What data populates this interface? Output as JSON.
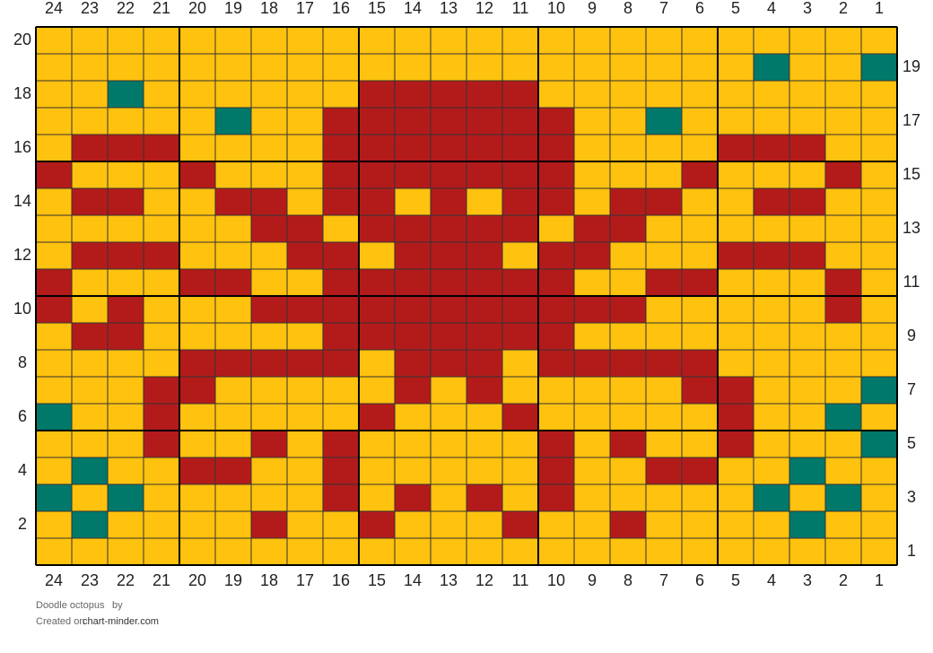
{
  "chart": {
    "type": "knitting-grid",
    "palette": {
      "Y": "#ffc20e",
      "R": "#b31b1b",
      "G": "#00786a"
    },
    "columns": [
      24,
      23,
      22,
      21,
      20,
      19,
      18,
      17,
      16,
      15,
      14,
      13,
      12,
      11,
      10,
      9,
      8,
      7,
      6,
      5,
      4,
      3,
      2,
      1
    ],
    "rows": [
      {
        "label": 20,
        "cells": "YYYYYYYYYYYYYYYYYYYYYYYY"
      },
      {
        "label": 19,
        "cells": "YYYYYYYYYYYYYYYYYYYYGYYG"
      },
      {
        "label": 18,
        "cells": "YYGYYYYYYRRRRRYYYYYYYYYY"
      },
      {
        "label": 17,
        "cells": "YYYYYGYYRRRRRRRYYGYYYYYY"
      },
      {
        "label": 16,
        "cells": "YRRRYYYYRRRRRRRYYYYRRRYY"
      },
      {
        "label": 15,
        "cells": "RYYYRYYYRRRRRRRYYYRYYYRY"
      },
      {
        "label": 14,
        "cells": "YRRYYRRYRRYRYRRYRRYYRRYY"
      },
      {
        "label": 13,
        "cells": "YYYYYYRRYRRRRRYRRYYYYYYY"
      },
      {
        "label": 12,
        "cells": "YRRRYYYRRYRRRYRRYYYRRRYY"
      },
      {
        "label": 11,
        "cells": "RYYYRRYYRRRRRRRYYRRYYYRY"
      },
      {
        "label": 10,
        "cells": "RYRYYYRRRRRRRRRRRYYYYYRY"
      },
      {
        "label": 9,
        "cells": "YRRYYYYYRRRRRRRYYYYYYYYY"
      },
      {
        "label": 8,
        "cells": "YYYYRRRRRYRRRYRRRRRYYYYY"
      },
      {
        "label": 7,
        "cells": "YYYRRYYYYYRYRYYYYYRRYYYG"
      },
      {
        "label": 6,
        "cells": "GYYRYYYYYRYYYRYYYYYRYYGY"
      },
      {
        "label": 5,
        "cells": "YYYRYYRYRYYYYYRYRYYRYYYG"
      },
      {
        "label": 4,
        "cells": "YGYYRRYYRYYYYYRYYRRYYGYY"
      },
      {
        "label": 3,
        "cells": "GYGYYYYYRYRYRYRYYYYYGYGY"
      },
      {
        "label": 2,
        "cells": "YGYYYYRYYRYYYRYYRYYYYGYY"
      },
      {
        "label": 1,
        "cells": "YYYYYYYYYYYYYYYYYYYYYYYY"
      }
    ],
    "title": "Doodle octopus",
    "by": "by",
    "created": "Created on",
    "site": "chart-minder.com"
  }
}
